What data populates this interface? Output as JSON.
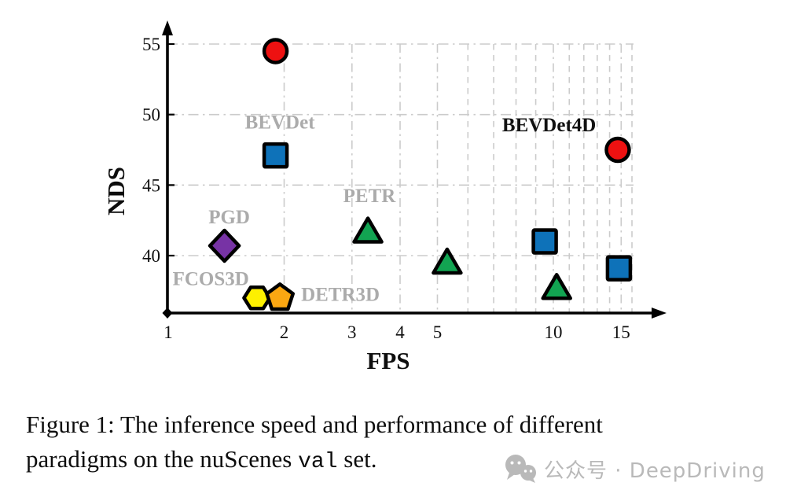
{
  "figure": {
    "caption": {
      "line1": "Figure 1: The inference speed and performance of different",
      "line2_pre": "paradigms on the nuScenes ",
      "line2_mono": "val",
      "line2_post": " set."
    },
    "watermark": {
      "icon": "wechat-icon",
      "text": "公众号 · DeepDriving",
      "color": "#b9b9b9"
    }
  },
  "chart_data": {
    "type": "scatter",
    "title": "",
    "xlabel": "FPS",
    "ylabel": "NDS",
    "x_scale": "log",
    "xlim": [
      1,
      17.5
    ],
    "ylim": [
      36,
      56.5
    ],
    "x_ticks": [
      1,
      2,
      3,
      4,
      5,
      10,
      15
    ],
    "y_ticks": [
      40,
      45,
      50,
      55
    ],
    "x_major_gridlines": [
      2,
      3,
      4,
      5,
      10,
      15
    ],
    "x_minor_gridlines": [
      6,
      7,
      8,
      9,
      11,
      12,
      13,
      14,
      16
    ],
    "grid": true,
    "legend": "none",
    "grid_color": "#cbcbcb",
    "series": [
      {
        "name": "BEVDet4D",
        "marker": "circle",
        "color": "#ee1111",
        "label_color": "#111111",
        "label_at": {
          "fps": 9.75,
          "nds": 49.3
        },
        "points": [
          {
            "fps": 1.9,
            "nds": 54.5
          },
          {
            "fps": 14.7,
            "nds": 47.5
          }
        ]
      },
      {
        "name": "BEVDet",
        "marker": "square",
        "color": "#0e72b9",
        "label_color": "#ababab",
        "label_at": {
          "fps": 1.95,
          "nds": 49.5
        },
        "points": [
          {
            "fps": 1.9,
            "nds": 47.1
          },
          {
            "fps": 9.5,
            "nds": 41.0
          },
          {
            "fps": 14.8,
            "nds": 39.1
          }
        ]
      },
      {
        "name": "PETR",
        "marker": "triangle",
        "color": "#12a452",
        "label_color": "#ababab",
        "label_at": {
          "fps": 3.33,
          "nds": 44.3
        },
        "points": [
          {
            "fps": 3.3,
            "nds": 41.7
          },
          {
            "fps": 5.3,
            "nds": 39.5
          },
          {
            "fps": 10.2,
            "nds": 37.7
          }
        ]
      },
      {
        "name": "PGD",
        "marker": "diamond",
        "color": "#7733a5",
        "label_color": "#ababab",
        "label_at": {
          "fps": 1.44,
          "nds": 42.8
        },
        "points": [
          {
            "fps": 1.4,
            "nds": 40.7
          }
        ]
      },
      {
        "name": "FCOS3D",
        "marker": "hexagon",
        "color": "#fdf000",
        "label_color": "#ababab",
        "label_at": {
          "fps": 1.29,
          "nds": 38.4
        },
        "points": [
          {
            "fps": 1.7,
            "nds": 37.0
          }
        ]
      },
      {
        "name": "DETR3D",
        "marker": "pentagon",
        "color": "#fba712",
        "label_color": "#ababab",
        "label_at": {
          "fps": 2.8,
          "nds": 37.3
        },
        "points": [
          {
            "fps": 1.95,
            "nds": 37.0
          }
        ]
      }
    ]
  }
}
